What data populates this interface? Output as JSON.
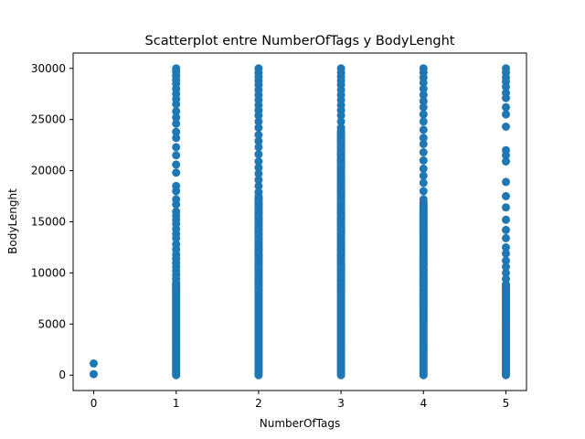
{
  "chart_data": {
    "type": "scatter",
    "title": "Scatterplot entre NumberOfTags y BodyLenght",
    "xlabel": "NumberOfTags",
    "ylabel": "BodyLenght",
    "xlim": [
      -0.25,
      5.25
    ],
    "ylim": [
      -1500,
      31500
    ],
    "xticks": [
      0,
      1,
      2,
      3,
      4,
      5
    ],
    "yticks": [
      0,
      5000,
      10000,
      15000,
      20000,
      25000,
      30000
    ],
    "grid": false,
    "marker_color": "#1f77b4",
    "series": [
      {
        "x": [
          0,
          0
        ],
        "y": [
          100,
          1150
        ],
        "dense_ranges": []
      },
      {
        "x": [
          1,
          1,
          1,
          1,
          1,
          1,
          1,
          1,
          1,
          1,
          1,
          1,
          1,
          1,
          1,
          1,
          1,
          1,
          1,
          1,
          1,
          1,
          1,
          1,
          1,
          1,
          1,
          1,
          1,
          1,
          1,
          1,
          1,
          1,
          1,
          1,
          1,
          1,
          1,
          1
        ],
        "y": [
          30000,
          29700,
          29300,
          28900,
          28500,
          28000,
          27500,
          27000,
          26500,
          25800,
          25200,
          24600,
          23800,
          23200,
          22300,
          21500,
          20600,
          19800,
          18500,
          18000,
          17200,
          16700,
          16000,
          15600,
          15200,
          14800,
          14300,
          13800,
          13400,
          12800,
          12300,
          11800,
          11400,
          11000,
          10600,
          10200,
          9800,
          9400,
          9000,
          8600
        ],
        "dense_ranges": [
          [
            0,
            9000
          ]
        ]
      },
      {
        "x": [
          2,
          2,
          2,
          2,
          2,
          2,
          2,
          2,
          2,
          2,
          2,
          2,
          2,
          2,
          2,
          2,
          2,
          2,
          2,
          2,
          2,
          2,
          2,
          2,
          2,
          2,
          2,
          2,
          2,
          2,
          2,
          2,
          2,
          2,
          2,
          2,
          2,
          2,
          2,
          2,
          2,
          2
        ],
        "y": [
          30000,
          29600,
          29200,
          28800,
          28400,
          27900,
          27400,
          26900,
          26400,
          25900,
          25400,
          24800,
          24200,
          23500,
          22900,
          22300,
          21600,
          20900,
          20300,
          19700,
          19100,
          18500,
          17900,
          17300,
          16800,
          16300,
          15800,
          15300,
          14800,
          14300,
          13800,
          13300,
          12800,
          12300,
          11800,
          11300,
          10800,
          10300,
          9800,
          9300,
          8800,
          8300
        ],
        "dense_ranges": [
          [
            0,
            17500
          ]
        ]
      },
      {
        "x": [
          3,
          3,
          3,
          3,
          3,
          3,
          3,
          3,
          3,
          3,
          3,
          3,
          3,
          3,
          3,
          3,
          3,
          3,
          3,
          3,
          3,
          3,
          3,
          3,
          3,
          3,
          3,
          3,
          3,
          3,
          3,
          3,
          3,
          3,
          3,
          3,
          3,
          3,
          3,
          3,
          3,
          3
        ],
        "y": [
          30000,
          29600,
          29200,
          28800,
          28400,
          27900,
          27400,
          26900,
          26400,
          25900,
          25400,
          24800,
          24200,
          23500,
          22900,
          22300,
          21600,
          20900,
          20300,
          19700,
          19100,
          18500,
          17900,
          17300,
          16800,
          16300,
          15800,
          15300,
          14800,
          14300,
          13800,
          13300,
          12800,
          12300,
          11800,
          11300,
          10800,
          10300,
          9800,
          9300,
          8800,
          8300
        ],
        "dense_ranges": [
          [
            0,
            24000
          ]
        ]
      },
      {
        "x": [
          4,
          4,
          4,
          4,
          4,
          4,
          4,
          4,
          4,
          4,
          4,
          4,
          4,
          4,
          4,
          4,
          4,
          4,
          4,
          4,
          4,
          4,
          4,
          4,
          4,
          4,
          4,
          4,
          4,
          4,
          4,
          4,
          4,
          4,
          4,
          4,
          4,
          4,
          4,
          4
        ],
        "y": [
          30000,
          29600,
          29100,
          28600,
          28000,
          27400,
          26800,
          26200,
          25500,
          24800,
          24000,
          23200,
          22600,
          21800,
          21000,
          20200,
          19500,
          18800,
          18000,
          17200,
          16500,
          15800,
          15200,
          14500,
          13900,
          13300,
          12700,
          12100,
          11500,
          10900,
          10300,
          9800,
          9300,
          8800,
          8300,
          7800,
          7300,
          6800,
          6300,
          5800
        ],
        "dense_ranges": [
          [
            0,
            17000
          ]
        ]
      },
      {
        "x": [
          5,
          5,
          5,
          5,
          5,
          5,
          5,
          5,
          5,
          5,
          5,
          5,
          5,
          5,
          5,
          5,
          5,
          5,
          5,
          5,
          5,
          5,
          5,
          5,
          5,
          5,
          5,
          5,
          5,
          5,
          5,
          5,
          5,
          5
        ],
        "y": [
          30000,
          29600,
          29100,
          28700,
          28200,
          27600,
          27100,
          26200,
          25500,
          24300,
          22000,
          21500,
          20900,
          18900,
          17500,
          16400,
          15200,
          14200,
          13400,
          12500,
          11900,
          11200,
          10600,
          10000,
          9400,
          8800,
          8300,
          7800,
          7200,
          6700,
          6200,
          5700,
          5200,
          4700
        ],
        "dense_ranges": [
          [
            0,
            9000
          ]
        ]
      }
    ]
  }
}
